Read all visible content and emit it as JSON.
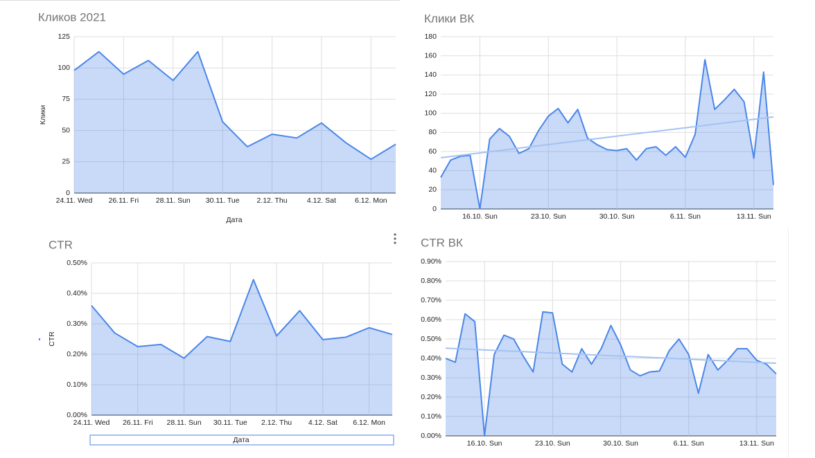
{
  "chart_data": [
    {
      "type": "area",
      "title": "Кликов 2021",
      "x_label": "Дата",
      "y_label": "Клики",
      "color": "#4a86e8",
      "grid": true,
      "trendline": false,
      "categories": [
        "24.11. Wed",
        null,
        "26.11. Fri",
        null,
        "28.11. Sun",
        null,
        "30.11. Tue",
        null,
        "2.12. Thu",
        null,
        "4.12. Sat",
        null,
        "6.12. Mon",
        null
      ],
      "values": [
        98,
        113,
        95,
        106,
        90,
        113,
        57,
        37,
        47,
        44,
        56,
        40,
        27,
        39
      ],
      "ylim": [
        0,
        125
      ],
      "yticks": [
        0,
        25,
        50,
        75,
        100,
        125
      ]
    },
    {
      "type": "area",
      "title": "Клики ВК",
      "color": "#4a86e8",
      "grid": true,
      "trendline": true,
      "categories": [
        null,
        null,
        null,
        null,
        "16.10. Sun",
        null,
        null,
        null,
        null,
        null,
        null,
        "23.10. Sun",
        null,
        null,
        null,
        null,
        null,
        null,
        "30.10. Sun",
        null,
        null,
        null,
        null,
        null,
        null,
        "6.11. Sun",
        null,
        null,
        null,
        null,
        null,
        null,
        "13.11. Sun",
        null,
        null
      ],
      "values": [
        33,
        51,
        55,
        56,
        0,
        73,
        84,
        76,
        58,
        63,
        82,
        97,
        105,
        90,
        104,
        74,
        67,
        62,
        61,
        63,
        51,
        63,
        65,
        56,
        65,
        54,
        78,
        156,
        104,
        114,
        125,
        112,
        53,
        143,
        25
      ],
      "ylim": [
        0,
        180
      ],
      "yticks": [
        0,
        20,
        40,
        60,
        80,
        100,
        120,
        140,
        160,
        180
      ]
    },
    {
      "type": "area",
      "title": "CTR",
      "x_label": "Дата",
      "y_label": "CTR",
      "color": "#4a86e8",
      "grid": true,
      "trendline": false,
      "categories": [
        "24.11. Wed",
        null,
        "26.11. Fri",
        null,
        "28.11. Sun",
        null,
        "30.11. Tue",
        null,
        "2.12. Thu",
        null,
        "4.12. Sat",
        null,
        "6.12. Mon",
        null
      ],
      "values": [
        0.36,
        0.27,
        0.225,
        0.232,
        0.187,
        0.258,
        0.242,
        0.445,
        0.26,
        0.343,
        0.248,
        0.256,
        0.287,
        0.265
      ],
      "ylim": [
        0,
        0.5
      ],
      "yticks": [
        {
          "value": 0,
          "label": "0.00%"
        },
        {
          "value": 0.1,
          "label": "0.10%"
        },
        {
          "value": 0.2,
          "label": "0.20%"
        },
        {
          "value": 0.3,
          "label": "0.30%"
        },
        {
          "value": 0.4,
          "label": "0.40%"
        },
        {
          "value": 0.5,
          "label": "0.50%"
        }
      ]
    },
    {
      "type": "area",
      "title": "CTR ВК",
      "color": "#4a86e8",
      "grid": true,
      "trendline": true,
      "categories": [
        null,
        null,
        null,
        null,
        "16.10. Sun",
        null,
        null,
        null,
        null,
        null,
        null,
        "23.10. Sun",
        null,
        null,
        null,
        null,
        null,
        null,
        "30.10. Sun",
        null,
        null,
        null,
        null,
        null,
        null,
        "6.11. Sun",
        null,
        null,
        null,
        null,
        null,
        null,
        "13.11. Sun",
        null,
        null
      ],
      "values": [
        0.4,
        0.38,
        0.63,
        0.59,
        0,
        0.42,
        0.52,
        0.5,
        0.41,
        0.33,
        0.64,
        0.635,
        0.37,
        0.33,
        0.45,
        0.37,
        0.45,
        0.57,
        0.47,
        0.34,
        0.31,
        0.33,
        0.335,
        0.44,
        0.5,
        0.42,
        0.22,
        0.42,
        0.34,
        0.39,
        0.45,
        0.45,
        0.39,
        0.37,
        0.32
      ],
      "ylim": [
        0,
        0.9
      ],
      "yticks": [
        {
          "value": 0,
          "label": "0.00%"
        },
        {
          "value": 0.1,
          "label": "0.10%"
        },
        {
          "value": 0.2,
          "label": "0.20%"
        },
        {
          "value": 0.3,
          "label": "0.30%"
        },
        {
          "value": 0.4,
          "label": "0.40%"
        },
        {
          "value": 0.5,
          "label": "0.50%"
        },
        {
          "value": 0.6,
          "label": "0.60%"
        },
        {
          "value": 0.7,
          "label": "0.70%"
        },
        {
          "value": 0.8,
          "label": "0.80%"
        },
        {
          "value": 0.9,
          "label": "0.90%"
        }
      ]
    }
  ]
}
